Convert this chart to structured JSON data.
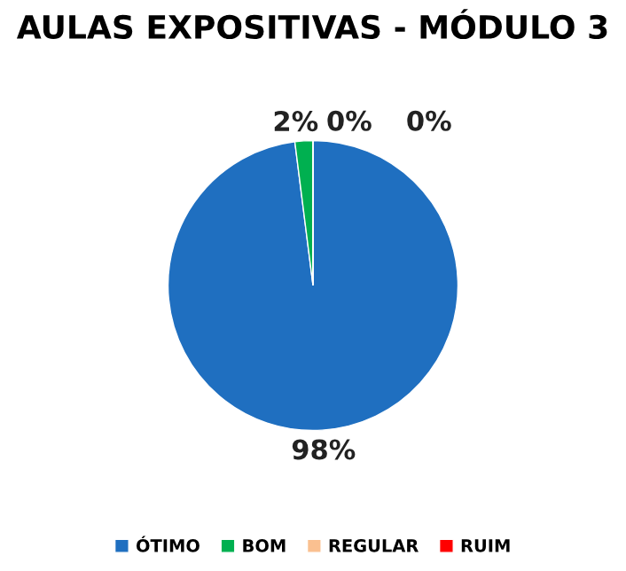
{
  "chart_data": {
    "type": "pie",
    "title": "AULAS EXPOSITIVAS - MÓDULO 3",
    "categories": [
      "ÓTIMO",
      "BOM",
      "REGULAR",
      "RUIM"
    ],
    "values": [
      98,
      2,
      0,
      0
    ],
    "colors": [
      "#1f6fc0",
      "#00b050",
      "#fac090",
      "#ff0000"
    ],
    "value_labels": [
      "98%",
      "2%",
      "0%",
      "0%"
    ],
    "legend": "bottom"
  }
}
